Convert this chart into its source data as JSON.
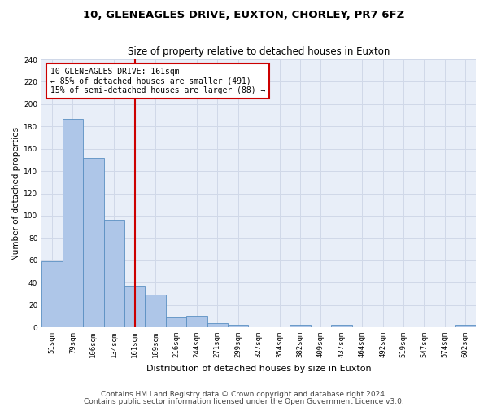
{
  "title1": "10, GLENEAGLES DRIVE, EUXTON, CHORLEY, PR7 6FZ",
  "title2": "Size of property relative to detached houses in Euxton",
  "xlabel": "Distribution of detached houses by size in Euxton",
  "ylabel": "Number of detached properties",
  "categories": [
    "51sqm",
    "79sqm",
    "106sqm",
    "134sqm",
    "161sqm",
    "189sqm",
    "216sqm",
    "244sqm",
    "271sqm",
    "299sqm",
    "327sqm",
    "354sqm",
    "382sqm",
    "409sqm",
    "437sqm",
    "464sqm",
    "492sqm",
    "519sqm",
    "547sqm",
    "574sqm",
    "602sqm"
  ],
  "values": [
    59,
    187,
    152,
    96,
    37,
    29,
    9,
    10,
    4,
    2,
    0,
    0,
    2,
    0,
    2,
    0,
    0,
    0,
    0,
    0,
    2
  ],
  "bar_color": "#aec6e8",
  "bar_edge_color": "#5a8fc2",
  "vline_index": 4,
  "vline_color": "#cc0000",
  "annotation_text": "10 GLENEAGLES DRIVE: 161sqm\n← 85% of detached houses are smaller (491)\n15% of semi-detached houses are larger (88) →",
  "annotation_box_color": "#ffffff",
  "annotation_box_edge": "#cc0000",
  "ylim": [
    0,
    240
  ],
  "yticks": [
    0,
    20,
    40,
    60,
    80,
    100,
    120,
    140,
    160,
    180,
    200,
    220,
    240
  ],
  "grid_color": "#d0d8e8",
  "bg_color": "#e8eef8",
  "footer1": "Contains HM Land Registry data © Crown copyright and database right 2024.",
  "footer2": "Contains public sector information licensed under the Open Government Licence v3.0.",
  "title1_fontsize": 9.5,
  "title2_fontsize": 8.5,
  "xlabel_fontsize": 8,
  "ylabel_fontsize": 7.5,
  "tick_fontsize": 6.5,
  "ann_fontsize": 7,
  "footer_fontsize": 6.5
}
